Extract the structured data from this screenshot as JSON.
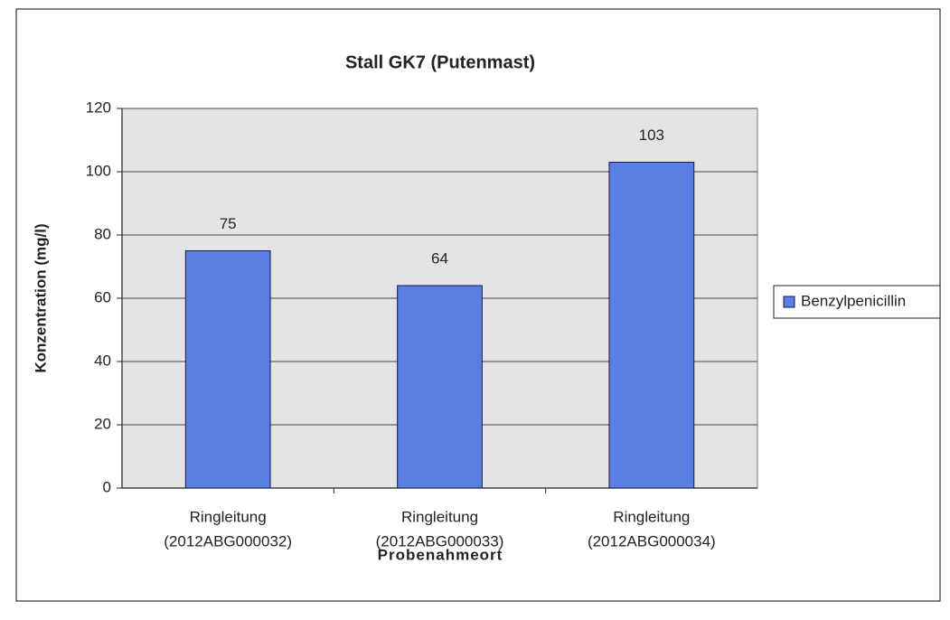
{
  "chart_data": {
    "type": "bar",
    "title": "Stall GK7 (Putenmast)",
    "x_label": "Probenahmeort",
    "y_label": "Konzentration (mg/l)",
    "categories": [
      [
        "Ringleitung",
        "(2012ABG000032)"
      ],
      [
        "Ringleitung",
        "(2012ABG000033)"
      ],
      [
        "Ringleitung",
        "(2012ABG000034)"
      ]
    ],
    "series": [
      {
        "name": "Benzylpenicillin",
        "color": "#5b7ee5",
        "values": [
          75,
          64,
          103
        ]
      }
    ],
    "ylim": [
      0,
      120
    ],
    "yticks": [
      0,
      20,
      40,
      60,
      80,
      100,
      120
    ],
    "grid": true,
    "legend": "right"
  }
}
